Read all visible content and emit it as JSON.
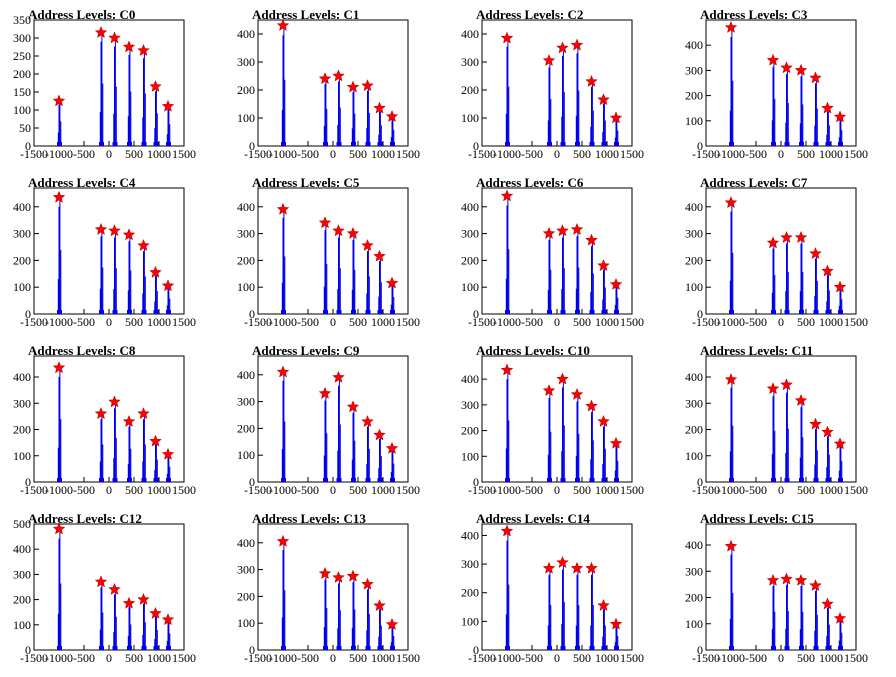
{
  "page": {
    "background": "#ffffff"
  },
  "style": {
    "histogram_color": "#0000ee",
    "marker_color": "#ff0000",
    "marker_shape": "star"
  },
  "chart_data": {
    "type": "histogram-grid",
    "x_ticks": [
      -1500,
      -1000,
      -500,
      0,
      500,
      1000,
      1500
    ],
    "xlim": [
      -1500,
      1500
    ],
    "peak_x": [
      -1000,
      -160,
      110,
      400,
      690,
      930,
      1180
    ],
    "panels": [
      {
        "title": "Address Levels: C0",
        "ymax": 350,
        "y_ticks": [
          0,
          50,
          100,
          150,
          200,
          250,
          300,
          350
        ],
        "peaks": [
          {
            "x": -1000,
            "y": 125
          },
          {
            "x": -160,
            "y": 315
          },
          {
            "x": 110,
            "y": 300
          },
          {
            "x": 400,
            "y": 275
          },
          {
            "x": 690,
            "y": 265
          },
          {
            "x": 930,
            "y": 165
          },
          {
            "x": 1180,
            "y": 110
          }
        ]
      },
      {
        "title": "Address Levels: C1",
        "ymax": 450,
        "y_ticks": [
          0,
          100,
          200,
          300,
          400
        ],
        "peaks": [
          {
            "x": -1000,
            "y": 430
          },
          {
            "x": -160,
            "y": 240
          },
          {
            "x": 110,
            "y": 250
          },
          {
            "x": 400,
            "y": 210
          },
          {
            "x": 690,
            "y": 215
          },
          {
            "x": 930,
            "y": 135
          },
          {
            "x": 1180,
            "y": 105
          }
        ]
      },
      {
        "title": "Address Levels: C2",
        "ymax": 450,
        "y_ticks": [
          0,
          100,
          200,
          300,
          400
        ],
        "peaks": [
          {
            "x": -1000,
            "y": 385
          },
          {
            "x": -160,
            "y": 305
          },
          {
            "x": 110,
            "y": 350
          },
          {
            "x": 400,
            "y": 360
          },
          {
            "x": 690,
            "y": 230
          },
          {
            "x": 930,
            "y": 165
          },
          {
            "x": 1180,
            "y": 100
          }
        ]
      },
      {
        "title": "Address Levels: C3",
        "ymax": 500,
        "y_ticks": [
          0,
          100,
          200,
          300,
          400
        ],
        "peaks": [
          {
            "x": -1000,
            "y": 470
          },
          {
            "x": -160,
            "y": 340
          },
          {
            "x": 110,
            "y": 310
          },
          {
            "x": 400,
            "y": 300
          },
          {
            "x": 690,
            "y": 270
          },
          {
            "x": 930,
            "y": 150
          },
          {
            "x": 1180,
            "y": 115
          }
        ]
      },
      {
        "title": "Address Levels: C4",
        "ymax": 470,
        "y_ticks": [
          0,
          100,
          200,
          300,
          400
        ],
        "peaks": [
          {
            "x": -1000,
            "y": 435
          },
          {
            "x": -160,
            "y": 315
          },
          {
            "x": 110,
            "y": 310
          },
          {
            "x": 400,
            "y": 295
          },
          {
            "x": 690,
            "y": 255
          },
          {
            "x": 930,
            "y": 155
          },
          {
            "x": 1180,
            "y": 105
          }
        ]
      },
      {
        "title": "Address Levels: C5",
        "ymax": 470,
        "y_ticks": [
          0,
          100,
          200,
          300,
          400
        ],
        "peaks": [
          {
            "x": -1000,
            "y": 390
          },
          {
            "x": -160,
            "y": 340
          },
          {
            "x": 110,
            "y": 310
          },
          {
            "x": 400,
            "y": 300
          },
          {
            "x": 690,
            "y": 255
          },
          {
            "x": 930,
            "y": 215
          },
          {
            "x": 1180,
            "y": 115
          }
        ]
      },
      {
        "title": "Address Levels: C6",
        "ymax": 470,
        "y_ticks": [
          0,
          100,
          200,
          300,
          400
        ],
        "peaks": [
          {
            "x": -1000,
            "y": 440
          },
          {
            "x": -160,
            "y": 300
          },
          {
            "x": 110,
            "y": 310
          },
          {
            "x": 400,
            "y": 315
          },
          {
            "x": 690,
            "y": 275
          },
          {
            "x": 930,
            "y": 180
          },
          {
            "x": 1180,
            "y": 110
          }
        ]
      },
      {
        "title": "Address Levels: C7",
        "ymax": 470,
        "y_ticks": [
          0,
          100,
          200,
          300,
          400
        ],
        "peaks": [
          {
            "x": -1000,
            "y": 415
          },
          {
            "x": -160,
            "y": 265
          },
          {
            "x": 110,
            "y": 285
          },
          {
            "x": 400,
            "y": 285
          },
          {
            "x": 690,
            "y": 225
          },
          {
            "x": 930,
            "y": 160
          },
          {
            "x": 1180,
            "y": 100
          }
        ]
      },
      {
        "title": "Address Levels: C8",
        "ymax": 480,
        "y_ticks": [
          0,
          100,
          200,
          300,
          400
        ],
        "peaks": [
          {
            "x": -1000,
            "y": 435
          },
          {
            "x": -160,
            "y": 260
          },
          {
            "x": 110,
            "y": 305
          },
          {
            "x": 400,
            "y": 230
          },
          {
            "x": 690,
            "y": 260
          },
          {
            "x": 930,
            "y": 155
          },
          {
            "x": 1180,
            "y": 105
          }
        ]
      },
      {
        "title": "Address Levels: C9",
        "ymax": 470,
        "y_ticks": [
          0,
          100,
          200,
          300,
          400
        ],
        "peaks": [
          {
            "x": -1000,
            "y": 410
          },
          {
            "x": -160,
            "y": 330
          },
          {
            "x": 110,
            "y": 390
          },
          {
            "x": 400,
            "y": 280
          },
          {
            "x": 690,
            "y": 225
          },
          {
            "x": 930,
            "y": 175
          },
          {
            "x": 1180,
            "y": 125
          }
        ]
      },
      {
        "title": "Address Levels: C10",
        "ymax": 490,
        "y_ticks": [
          0,
          100,
          200,
          300,
          400
        ],
        "peaks": [
          {
            "x": -1000,
            "y": 435
          },
          {
            "x": -160,
            "y": 355
          },
          {
            "x": 110,
            "y": 400
          },
          {
            "x": 400,
            "y": 340
          },
          {
            "x": 690,
            "y": 295
          },
          {
            "x": 930,
            "y": 235
          },
          {
            "x": 1180,
            "y": 150
          }
        ]
      },
      {
        "title": "Address Levels: C11",
        "ymax": 480,
        "y_ticks": [
          0,
          100,
          200,
          300,
          400
        ],
        "peaks": [
          {
            "x": -1000,
            "y": 390
          },
          {
            "x": -160,
            "y": 355
          },
          {
            "x": 110,
            "y": 370
          },
          {
            "x": 400,
            "y": 310
          },
          {
            "x": 690,
            "y": 220
          },
          {
            "x": 930,
            "y": 190
          },
          {
            "x": 1180,
            "y": 145
          }
        ]
      },
      {
        "title": "Address Levels: C12",
        "ymax": 500,
        "y_ticks": [
          0,
          100,
          200,
          300,
          400,
          500
        ],
        "peaks": [
          {
            "x": -1000,
            "y": 480
          },
          {
            "x": -160,
            "y": 270
          },
          {
            "x": 110,
            "y": 240
          },
          {
            "x": 400,
            "y": 185
          },
          {
            "x": 690,
            "y": 200
          },
          {
            "x": 930,
            "y": 145
          },
          {
            "x": 1180,
            "y": 120
          }
        ]
      },
      {
        "title": "Address Levels: C13",
        "ymax": 470,
        "y_ticks": [
          0,
          100,
          200,
          300,
          400
        ],
        "peaks": [
          {
            "x": -1000,
            "y": 405
          },
          {
            "x": -160,
            "y": 285
          },
          {
            "x": 110,
            "y": 270
          },
          {
            "x": 400,
            "y": 275
          },
          {
            "x": 690,
            "y": 245
          },
          {
            "x": 930,
            "y": 165
          },
          {
            "x": 1180,
            "y": 95
          }
        ]
      },
      {
        "title": "Address Levels: C14",
        "ymax": 440,
        "y_ticks": [
          0,
          100,
          200,
          300,
          400
        ],
        "peaks": [
          {
            "x": -1000,
            "y": 415
          },
          {
            "x": -160,
            "y": 285
          },
          {
            "x": 110,
            "y": 305
          },
          {
            "x": 400,
            "y": 285
          },
          {
            "x": 690,
            "y": 285
          },
          {
            "x": 930,
            "y": 155
          },
          {
            "x": 1180,
            "y": 90
          }
        ]
      },
      {
        "title": "Address Levels: C15",
        "ymax": 480,
        "y_ticks": [
          0,
          100,
          200,
          300,
          400
        ],
        "peaks": [
          {
            "x": -1000,
            "y": 395
          },
          {
            "x": -160,
            "y": 265
          },
          {
            "x": 110,
            "y": 270
          },
          {
            "x": 400,
            "y": 265
          },
          {
            "x": 690,
            "y": 245
          },
          {
            "x": 930,
            "y": 175
          },
          {
            "x": 1180,
            "y": 120
          }
        ]
      }
    ]
  }
}
